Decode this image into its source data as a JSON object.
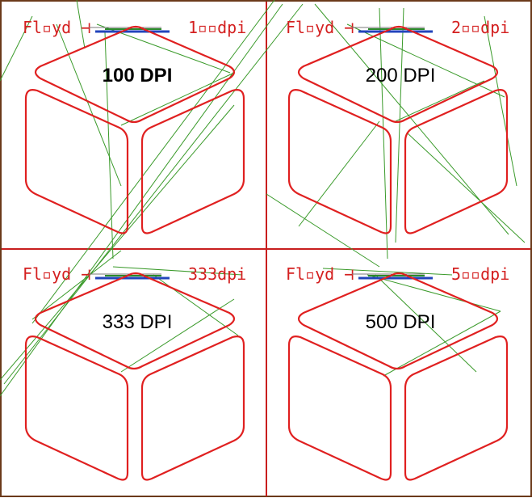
{
  "panels": [
    {
      "header_left": "Fl▫yd ⊣",
      "header_right": "1▫▫dpi",
      "title": "100 DPI",
      "bold": true
    },
    {
      "header_left": "Fl▫yd ⊣",
      "header_right": "2▫▫dpi",
      "title": "200 DPI",
      "bold": false
    },
    {
      "header_left": "Fl▫yd ⊣",
      "header_right": "333dpi",
      "title": "333 DPI",
      "bold": false
    },
    {
      "header_left": "Fl▫yd ⊣",
      "header_right": "5▫▫dpi",
      "title": "500 DPI",
      "bold": false
    }
  ],
  "colors": {
    "frame": "#c81e1e",
    "outer_frame": "#6b3a1a",
    "cube": "#e02020",
    "stray_lines": "#3a9a2a",
    "ink_blue": "#2244bb",
    "ink_green": "#2a8a2a"
  },
  "icons": [
    "cube-outline-icon"
  ]
}
